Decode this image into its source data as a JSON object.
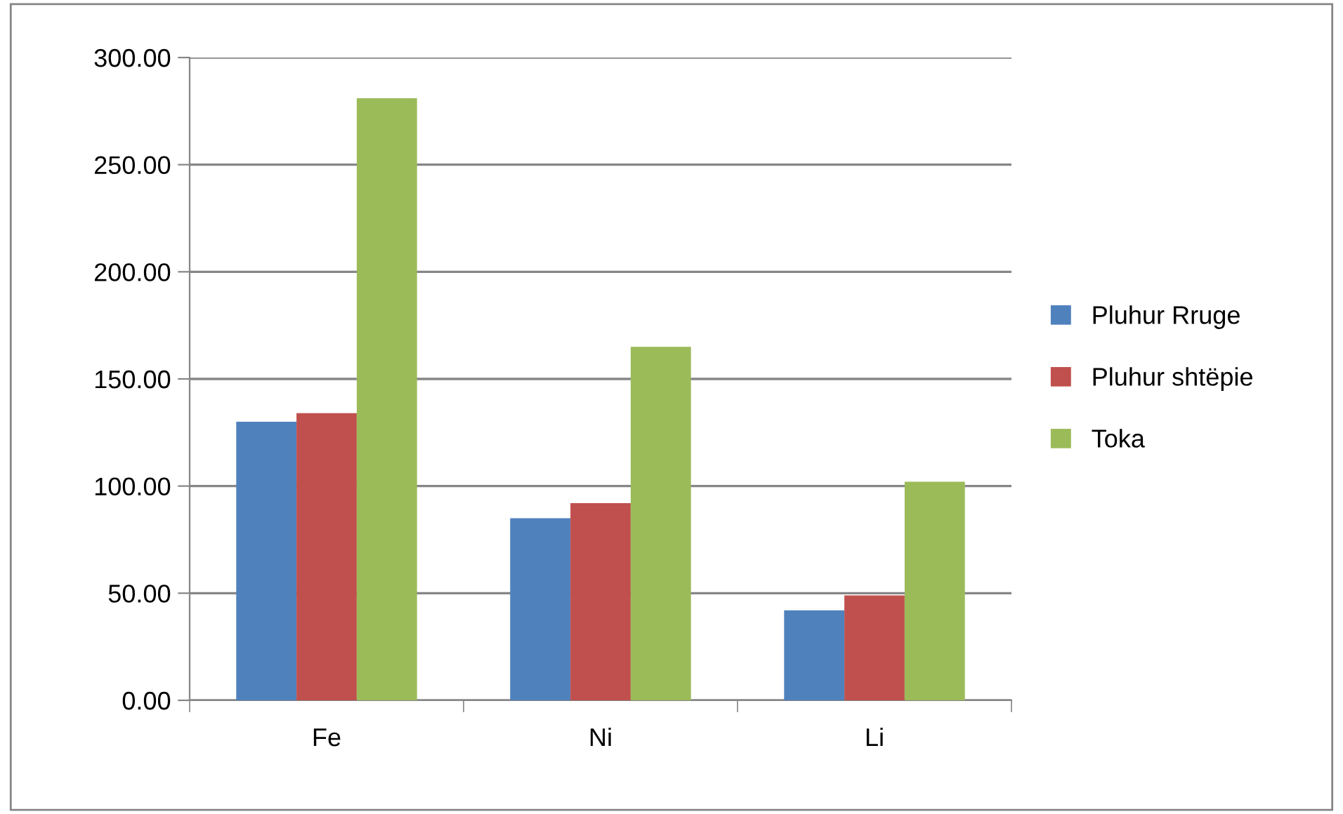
{
  "chart_data": {
    "type": "bar",
    "categories": [
      "Fe",
      "Ni",
      "Li"
    ],
    "series": [
      {
        "name": "Pluhur Rruge",
        "color": "#4f81bd",
        "values": [
          130,
          85,
          42
        ]
      },
      {
        "name": "Pluhur shtëpie",
        "color": "#c0504d",
        "values": [
          134,
          92,
          49
        ]
      },
      {
        "name": "Toka",
        "color": "#9bbb59",
        "values": [
          281,
          165,
          102
        ]
      }
    ],
    "ylim": [
      0,
      300
    ],
    "yticks": [
      {
        "value": 0,
        "label": "0.00"
      },
      {
        "value": 50,
        "label": "50.00"
      },
      {
        "value": 100,
        "label": "100.00"
      },
      {
        "value": 150,
        "label": "150.00"
      },
      {
        "value": 200,
        "label": "200.00"
      },
      {
        "value": 250,
        "label": "250.00"
      },
      {
        "value": 300,
        "label": "300.00"
      }
    ],
    "grid": "y",
    "legend": "right"
  }
}
